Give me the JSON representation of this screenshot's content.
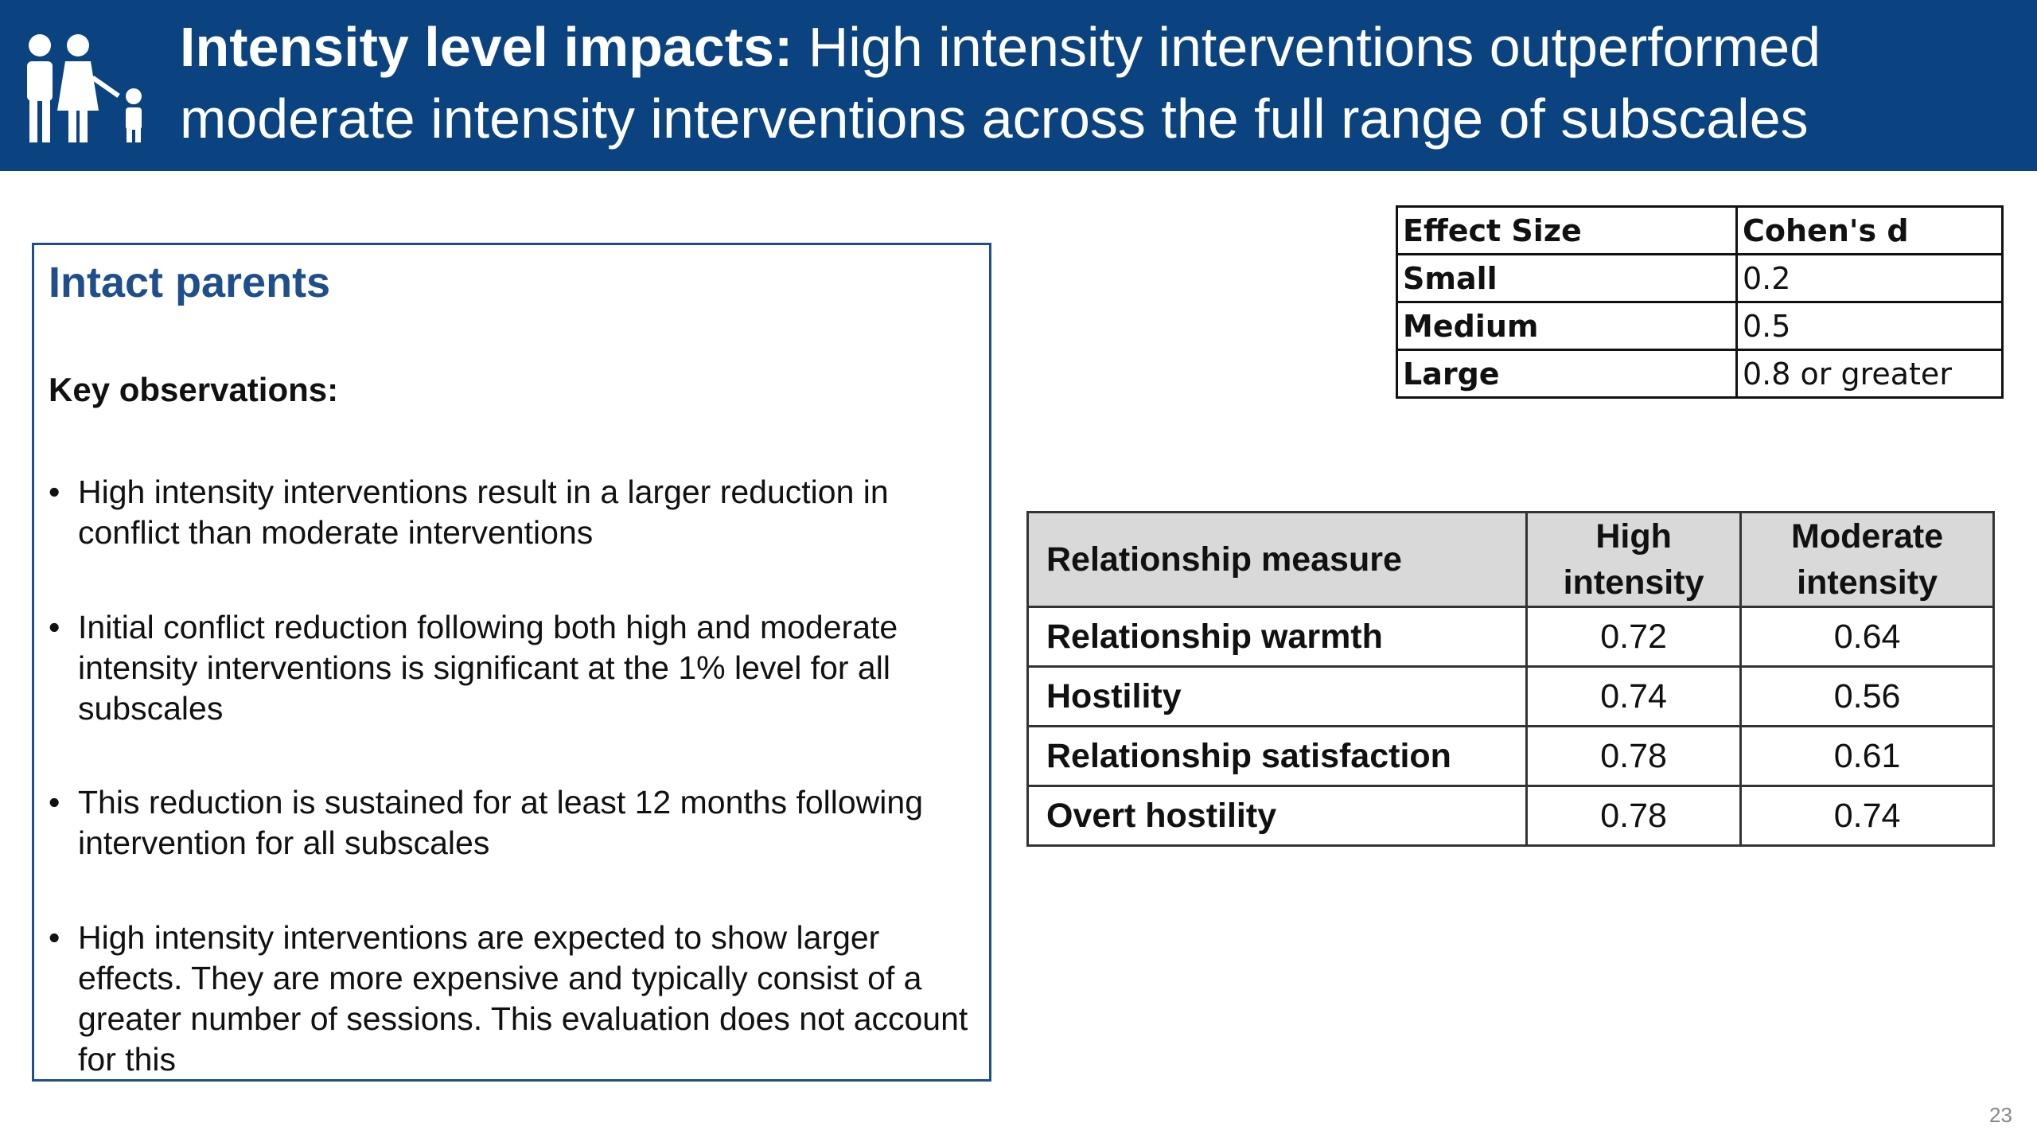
{
  "header": {
    "title_bold": "Intensity level impacts:",
    "title_rest": "High intensity interventions outperformed moderate intensity interventions across the full range of subscales"
  },
  "panel": {
    "title": "Intact parents",
    "subtitle": "Key observations:",
    "bullets": [
      "High intensity interventions result in a larger reduction in conflict than moderate interventions",
      "Initial conflict reduction following both high and moderate intensity interventions is significant at the 1% level for all subscales",
      "This reduction is sustained for at least 12 months following intervention for all subscales",
      "High intensity interventions are expected to show larger effects. They are more expensive and typically consist of a greater number of sessions. This evaluation does not account for this"
    ]
  },
  "effect_table": {
    "header": [
      "Effect Size",
      "Cohen's d"
    ],
    "rows": [
      [
        "Small",
        0.2
      ],
      [
        "Medium",
        0.5
      ],
      [
        "Large",
        "0.8 or greater"
      ]
    ]
  },
  "measure_table": {
    "header": [
      "Relationship measure",
      "High intensity",
      "Moderate intensity"
    ],
    "rows": [
      [
        "Relationship warmth",
        0.72,
        0.64
      ],
      [
        "Hostility",
        0.74,
        0.56
      ],
      [
        "Relationship satisfaction",
        0.78,
        0.61
      ],
      [
        "Overt hostility",
        0.78,
        0.74
      ]
    ]
  },
  "page_number": 23
}
